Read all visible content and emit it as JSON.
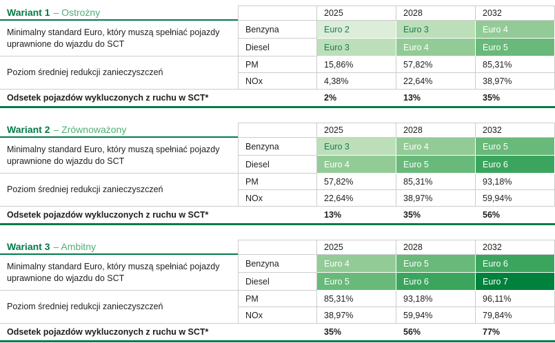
{
  "columns": [
    "2025",
    "2028",
    "2032"
  ],
  "labels": {
    "euro_group": "Minimalny standard Euro, który muszą spełniać pojazdy uprawnione do wjazdu do SCT",
    "reduction_group": "Poziom średniej redukcji zanieczyszczeń",
    "excluded": "Odsetek pojazdów wykluczonych z ruchu w SCT*",
    "fuel_petrol": "Benzyna",
    "fuel_diesel": "Diesel",
    "pollutant_pm": "PM",
    "pollutant_nox": "NOx"
  },
  "colors": {
    "title_dark_green": "#007a47",
    "title_light_green": "#4fae74",
    "rule_green": "#007a47",
    "border_gray": "#cccccc",
    "euro_scale": {
      "Euro 2": {
        "bg": "#dcedda",
        "text": "#1d7a50"
      },
      "Euro 3": {
        "bg": "#bcdfba",
        "text": "#1d7a50"
      },
      "Euro 4": {
        "bg": "#93cb97",
        "text": "#ffffff"
      },
      "Euro 5": {
        "bg": "#69b97a",
        "text": "#ffffff"
      },
      "Euro 6": {
        "bg": "#3ba55e",
        "text": "#ffffff"
      },
      "Euro 7": {
        "bg": "#00813c",
        "text": "#ffffff"
      }
    }
  },
  "variants": [
    {
      "title_bold": "Wariant 1",
      "title_rest": "– Ostrożny",
      "benzyna": [
        "Euro 2",
        "Euro 3",
        "Euro 4"
      ],
      "diesel": [
        "Euro 3",
        "Euro 4",
        "Euro 5"
      ],
      "pm": [
        "15,86%",
        "57,82%",
        "85,31%"
      ],
      "nox": [
        "4,38%",
        "22,64%",
        "38,97%"
      ],
      "excluded": [
        "2%",
        "13%",
        "35%"
      ]
    },
    {
      "title_bold": "Wariant 2",
      "title_rest": "– Zrównoważony",
      "benzyna": [
        "Euro 3",
        "Euro 4",
        "Euro 5"
      ],
      "diesel": [
        "Euro 4",
        "Euro 5",
        "Euro 6"
      ],
      "pm": [
        "57,82%",
        "85,31%",
        "93,18%"
      ],
      "nox": [
        "22,64%",
        "38,97%",
        "59,94%"
      ],
      "excluded": [
        "13%",
        "35%",
        "56%"
      ]
    },
    {
      "title_bold": "Wariant 3",
      "title_rest": "– Ambitny",
      "benzyna": [
        "Euro 4",
        "Euro 5",
        "Euro 6"
      ],
      "diesel": [
        "Euro 5",
        "Euro 6",
        "Euro 7"
      ],
      "pm": [
        "85,31%",
        "93,18%",
        "96,11%"
      ],
      "nox": [
        "38,97%",
        "59,94%",
        "79,84%"
      ],
      "excluded": [
        "35%",
        "56%",
        "77%"
      ]
    }
  ]
}
